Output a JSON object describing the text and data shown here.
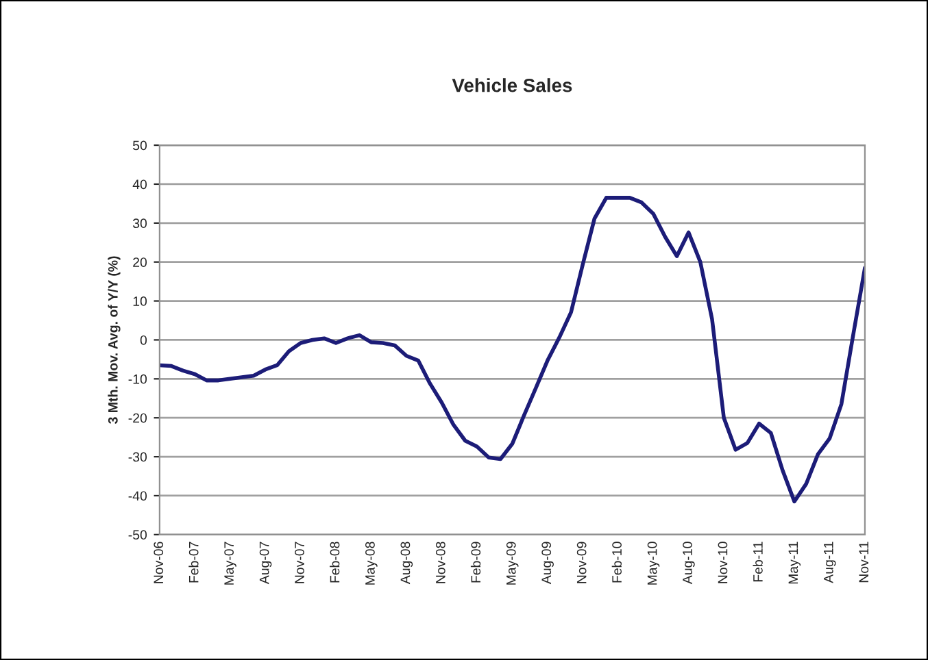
{
  "chart_data": {
    "type": "line",
    "title": "Vehicle Sales",
    "ylabel": "3 Mth. Mov. Avg. of Y/Y (%)",
    "categories": [
      "Nov-06",
      null,
      null,
      "Feb-07",
      null,
      null,
      "May-07",
      null,
      null,
      "Aug-07",
      null,
      null,
      "Nov-07",
      null,
      null,
      "Feb-08",
      null,
      null,
      "May-08",
      null,
      null,
      "Aug-08",
      null,
      null,
      "Nov-08",
      null,
      null,
      "Feb-09",
      null,
      null,
      "May-09",
      null,
      null,
      "Aug-09",
      null,
      null,
      "Nov-09",
      null,
      null,
      "Feb-10",
      null,
      null,
      "May-10",
      null,
      null,
      "Aug-10",
      null,
      null,
      "Nov-10",
      null,
      null,
      "Feb-11",
      null,
      null,
      "May-11",
      null,
      null,
      "Aug-11",
      null,
      null,
      "Nov-11"
    ],
    "series": [
      {
        "color": "#1c1c78",
        "values": [
          -6.5,
          -6.7,
          -7.9,
          -8.8,
          -10.4,
          -10.4,
          -10,
          -9.6,
          -9.2,
          -7.6,
          -6.5,
          -2.9,
          -0.8,
          0,
          0.4,
          -0.8,
          0.4,
          1.2,
          -0.6,
          -0.8,
          -1.4,
          -4.1,
          -5.3,
          -11.2,
          -16.1,
          -21.8,
          -25.9,
          -27.4,
          -30.2,
          -30.6,
          -26.7,
          -19.4,
          -12.4,
          -5.3,
          0.6,
          7.1,
          19.4,
          31.2,
          36.5,
          36.5,
          36.5,
          35.3,
          32.4,
          26.5,
          21.5,
          27.6,
          20,
          5.3,
          -20,
          -28.2,
          -26.5,
          -21.5,
          -23.9,
          -33.5,
          -41.5,
          -37,
          -29.4,
          -25.3,
          -16.5,
          1.2,
          18.5
        ]
      }
    ],
    "ylim": [
      -50,
      50
    ],
    "yticks": [
      -50,
      -40,
      -30,
      -20,
      -10,
      0,
      10,
      20,
      30,
      40,
      50
    ],
    "grid": "y",
    "legend": false,
    "marker": "none",
    "line_style": "solid"
  }
}
